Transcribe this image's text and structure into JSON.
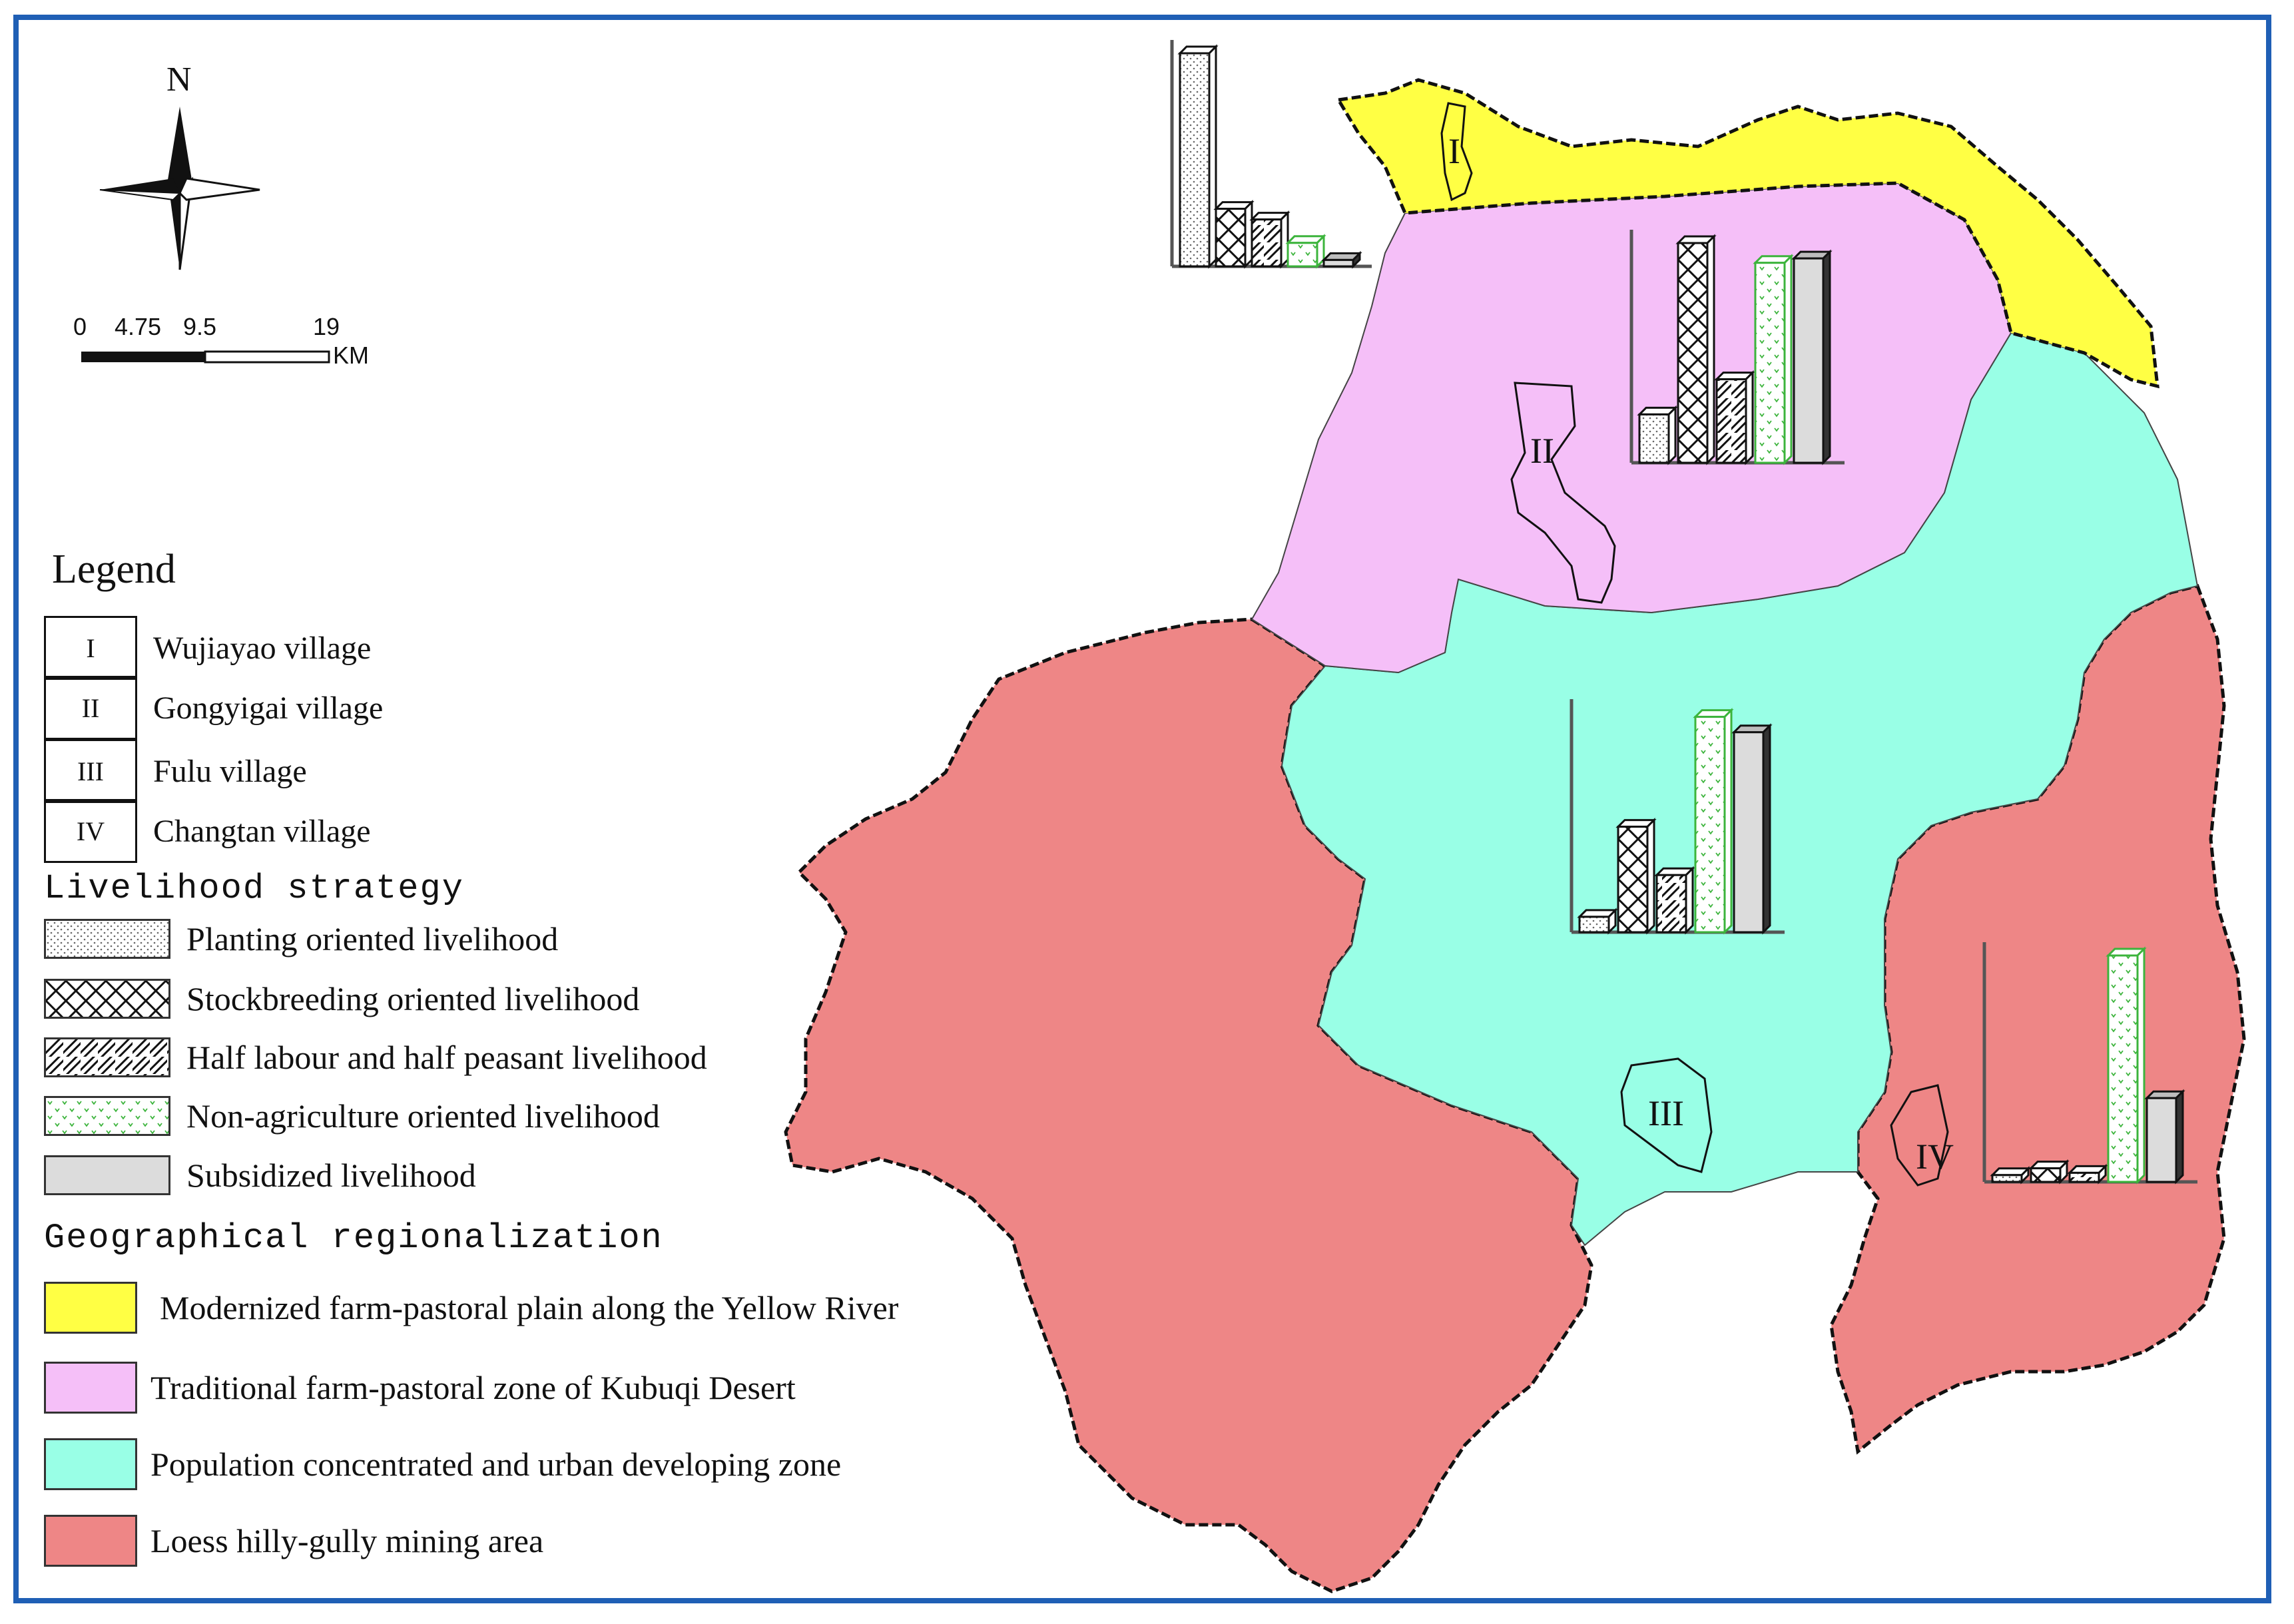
{
  "map": {
    "north_label": "N",
    "scale": {
      "ticks": [
        "0",
        "4.75",
        "9.5",
        "19"
      ],
      "unit": "KM"
    },
    "legend_title": "Legend",
    "villages": [
      {
        "symbol": "I",
        "name": "Wujiayao village"
      },
      {
        "symbol": "II",
        "name": "Gongyigai village"
      },
      {
        "symbol": "III",
        "name": "Fulu village"
      },
      {
        "symbol": "IV",
        "name": "Changtan village"
      }
    ],
    "livelihood_title": "Livelihood strategy",
    "livelihoods": [
      {
        "label": "Planting oriented livelihood",
        "pattern": "dots"
      },
      {
        "label": "Stockbreeding oriented livelihood",
        "pattern": "crosshatch"
      },
      {
        "label": "Half labour and half peasant livelihood",
        "pattern": "diagonal"
      },
      {
        "label": "Non-agriculture oriented livelihood",
        "pattern": "green-dots"
      },
      {
        "label": "Subsidized livelihood",
        "pattern": "grey"
      }
    ],
    "region_title": "Geographical regionalization",
    "regions": [
      {
        "label": "Modernized farm-pastoral plain along the Yellow River",
        "color": "#ffff44"
      },
      {
        "label": "Traditional farm-pastoral zone of Kubuqi Desert",
        "color": "#f5bff8"
      },
      {
        "label": "Population concentrated and urban developing zone",
        "color": "#99ffe6"
      },
      {
        "label": "Loess hilly-gully mining area",
        "color": "#ee8686"
      }
    ],
    "village_markers": [
      "I",
      "II",
      "III",
      "IV"
    ]
  },
  "chart_data": [
    {
      "type": "bar",
      "village": "I",
      "categories": [
        "Planting",
        "Stockbreeding",
        "Half labour and half peasant",
        "Non-agriculture",
        "Subsidized"
      ],
      "values": [
        100,
        27,
        22,
        11,
        3
      ],
      "ylim": [
        0,
        100
      ]
    },
    {
      "type": "bar",
      "village": "II",
      "categories": [
        "Planting",
        "Stockbreeding",
        "Half labour and half peasant",
        "Non-agriculture",
        "Subsidized"
      ],
      "values": [
        22,
        100,
        38,
        91,
        93
      ],
      "ylim": [
        0,
        100
      ]
    },
    {
      "type": "bar",
      "village": "III",
      "categories": [
        "Planting",
        "Stockbreeding",
        "Half labour and half peasant",
        "Non-agriculture",
        "Subsidized"
      ],
      "values": [
        7,
        48,
        26,
        98,
        91
      ],
      "ylim": [
        0,
        100
      ]
    },
    {
      "type": "bar",
      "village": "IV",
      "categories": [
        "Planting",
        "Stockbreeding",
        "Half labour and half peasant",
        "Non-agriculture",
        "Subsidized"
      ],
      "values": [
        3,
        6,
        4,
        100,
        37
      ],
      "ylim": [
        0,
        100
      ]
    }
  ]
}
